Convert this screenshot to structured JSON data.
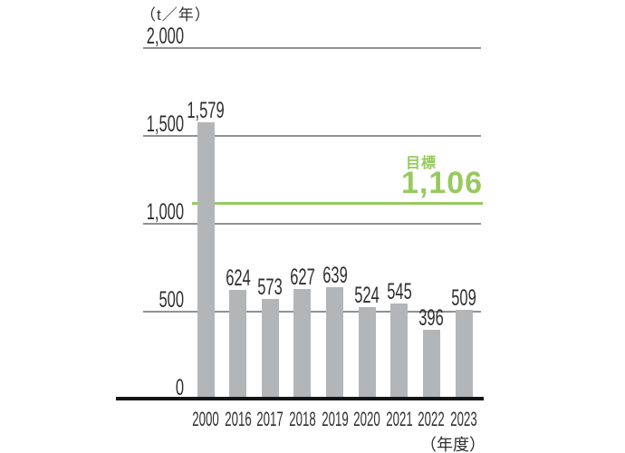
{
  "chart": {
    "unit_label": "（t／年）",
    "x_axis_label": "（年度）",
    "target_label": "目標",
    "target_value_label": "1,106",
    "colors": {
      "bar": "#b3b5b7",
      "grid": "#8f9193",
      "axis": "#151515",
      "target_green": "#97c95f",
      "text": "#2f2f2f"
    }
  },
  "chart_data": {
    "type": "bar",
    "title": "",
    "ylabel": "（t／年）",
    "xlabel": "（年度）",
    "categories": [
      "2000",
      "2016",
      "2017",
      "2018",
      "2019",
      "2020",
      "2021",
      "2022",
      "2023"
    ],
    "values": [
      1579,
      624,
      573,
      627,
      639,
      524,
      545,
      396,
      509
    ],
    "value_labels": [
      "1,579",
      "624",
      "573",
      "627",
      "639",
      "524",
      "545",
      "396",
      "509"
    ],
    "ylim": [
      0,
      2000
    ],
    "y_ticks": [
      {
        "value": 2000,
        "label": "2,000"
      },
      {
        "value": 1500,
        "label": "1,500"
      },
      {
        "value": 1000,
        "label": "1,000"
      },
      {
        "value": 500,
        "label": "500"
      },
      {
        "value": 0,
        "label": "0"
      }
    ],
    "grid": true,
    "legend_position": "none",
    "target_line": {
      "value": 1106,
      "label": "目標",
      "value_label": "1,106"
    }
  }
}
